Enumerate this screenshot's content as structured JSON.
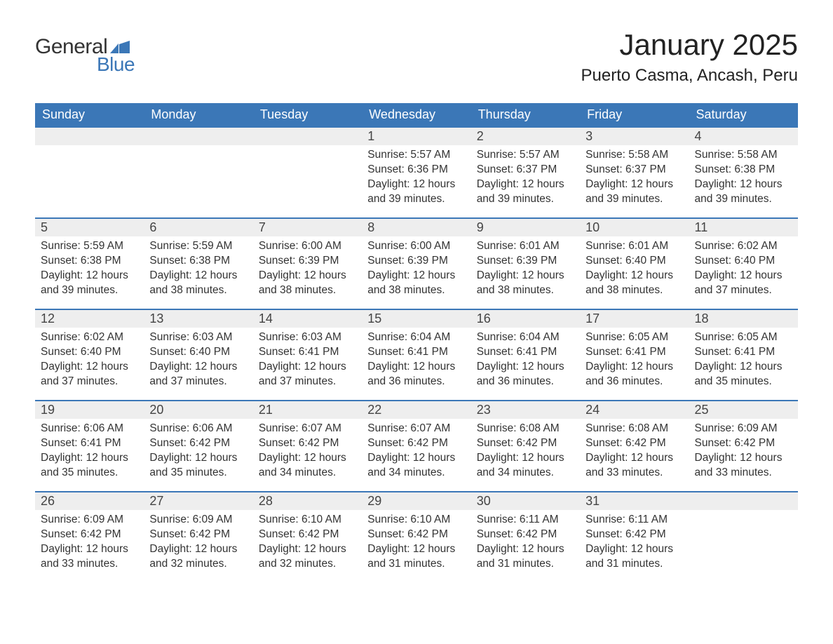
{
  "logo": {
    "text_general": "General",
    "text_blue": "Blue",
    "brand_color": "#3b77b7"
  },
  "title": "January 2025",
  "location": "Puerto Casma, Ancash, Peru",
  "colors": {
    "header_bg": "#3b77b7",
    "header_text": "#ffffff",
    "daynum_bg": "#eeeeee",
    "daynum_border": "#3b77b7",
    "body_text": "#333333",
    "page_bg": "#ffffff"
  },
  "typography": {
    "title_fontsize": 42,
    "location_fontsize": 24,
    "header_fontsize": 18,
    "daynum_fontsize": 18,
    "body_fontsize": 15.5
  },
  "weekdays": [
    "Sunday",
    "Monday",
    "Tuesday",
    "Wednesday",
    "Thursday",
    "Friday",
    "Saturday"
  ],
  "weeks": [
    [
      null,
      null,
      null,
      {
        "n": "1",
        "sunrise": "Sunrise: 5:57 AM",
        "sunset": "Sunset: 6:36 PM",
        "daylight": "Daylight: 12 hours and 39 minutes."
      },
      {
        "n": "2",
        "sunrise": "Sunrise: 5:57 AM",
        "sunset": "Sunset: 6:37 PM",
        "daylight": "Daylight: 12 hours and 39 minutes."
      },
      {
        "n": "3",
        "sunrise": "Sunrise: 5:58 AM",
        "sunset": "Sunset: 6:37 PM",
        "daylight": "Daylight: 12 hours and 39 minutes."
      },
      {
        "n": "4",
        "sunrise": "Sunrise: 5:58 AM",
        "sunset": "Sunset: 6:38 PM",
        "daylight": "Daylight: 12 hours and 39 minutes."
      }
    ],
    [
      {
        "n": "5",
        "sunrise": "Sunrise: 5:59 AM",
        "sunset": "Sunset: 6:38 PM",
        "daylight": "Daylight: 12 hours and 39 minutes."
      },
      {
        "n": "6",
        "sunrise": "Sunrise: 5:59 AM",
        "sunset": "Sunset: 6:38 PM",
        "daylight": "Daylight: 12 hours and 38 minutes."
      },
      {
        "n": "7",
        "sunrise": "Sunrise: 6:00 AM",
        "sunset": "Sunset: 6:39 PM",
        "daylight": "Daylight: 12 hours and 38 minutes."
      },
      {
        "n": "8",
        "sunrise": "Sunrise: 6:00 AM",
        "sunset": "Sunset: 6:39 PM",
        "daylight": "Daylight: 12 hours and 38 minutes."
      },
      {
        "n": "9",
        "sunrise": "Sunrise: 6:01 AM",
        "sunset": "Sunset: 6:39 PM",
        "daylight": "Daylight: 12 hours and 38 minutes."
      },
      {
        "n": "10",
        "sunrise": "Sunrise: 6:01 AM",
        "sunset": "Sunset: 6:40 PM",
        "daylight": "Daylight: 12 hours and 38 minutes."
      },
      {
        "n": "11",
        "sunrise": "Sunrise: 6:02 AM",
        "sunset": "Sunset: 6:40 PM",
        "daylight": "Daylight: 12 hours and 37 minutes."
      }
    ],
    [
      {
        "n": "12",
        "sunrise": "Sunrise: 6:02 AM",
        "sunset": "Sunset: 6:40 PM",
        "daylight": "Daylight: 12 hours and 37 minutes."
      },
      {
        "n": "13",
        "sunrise": "Sunrise: 6:03 AM",
        "sunset": "Sunset: 6:40 PM",
        "daylight": "Daylight: 12 hours and 37 minutes."
      },
      {
        "n": "14",
        "sunrise": "Sunrise: 6:03 AM",
        "sunset": "Sunset: 6:41 PM",
        "daylight": "Daylight: 12 hours and 37 minutes."
      },
      {
        "n": "15",
        "sunrise": "Sunrise: 6:04 AM",
        "sunset": "Sunset: 6:41 PM",
        "daylight": "Daylight: 12 hours and 36 minutes."
      },
      {
        "n": "16",
        "sunrise": "Sunrise: 6:04 AM",
        "sunset": "Sunset: 6:41 PM",
        "daylight": "Daylight: 12 hours and 36 minutes."
      },
      {
        "n": "17",
        "sunrise": "Sunrise: 6:05 AM",
        "sunset": "Sunset: 6:41 PM",
        "daylight": "Daylight: 12 hours and 36 minutes."
      },
      {
        "n": "18",
        "sunrise": "Sunrise: 6:05 AM",
        "sunset": "Sunset: 6:41 PM",
        "daylight": "Daylight: 12 hours and 35 minutes."
      }
    ],
    [
      {
        "n": "19",
        "sunrise": "Sunrise: 6:06 AM",
        "sunset": "Sunset: 6:41 PM",
        "daylight": "Daylight: 12 hours and 35 minutes."
      },
      {
        "n": "20",
        "sunrise": "Sunrise: 6:06 AM",
        "sunset": "Sunset: 6:42 PM",
        "daylight": "Daylight: 12 hours and 35 minutes."
      },
      {
        "n": "21",
        "sunrise": "Sunrise: 6:07 AM",
        "sunset": "Sunset: 6:42 PM",
        "daylight": "Daylight: 12 hours and 34 minutes."
      },
      {
        "n": "22",
        "sunrise": "Sunrise: 6:07 AM",
        "sunset": "Sunset: 6:42 PM",
        "daylight": "Daylight: 12 hours and 34 minutes."
      },
      {
        "n": "23",
        "sunrise": "Sunrise: 6:08 AM",
        "sunset": "Sunset: 6:42 PM",
        "daylight": "Daylight: 12 hours and 34 minutes."
      },
      {
        "n": "24",
        "sunrise": "Sunrise: 6:08 AM",
        "sunset": "Sunset: 6:42 PM",
        "daylight": "Daylight: 12 hours and 33 minutes."
      },
      {
        "n": "25",
        "sunrise": "Sunrise: 6:09 AM",
        "sunset": "Sunset: 6:42 PM",
        "daylight": "Daylight: 12 hours and 33 minutes."
      }
    ],
    [
      {
        "n": "26",
        "sunrise": "Sunrise: 6:09 AM",
        "sunset": "Sunset: 6:42 PM",
        "daylight": "Daylight: 12 hours and 33 minutes."
      },
      {
        "n": "27",
        "sunrise": "Sunrise: 6:09 AM",
        "sunset": "Sunset: 6:42 PM",
        "daylight": "Daylight: 12 hours and 32 minutes."
      },
      {
        "n": "28",
        "sunrise": "Sunrise: 6:10 AM",
        "sunset": "Sunset: 6:42 PM",
        "daylight": "Daylight: 12 hours and 32 minutes."
      },
      {
        "n": "29",
        "sunrise": "Sunrise: 6:10 AM",
        "sunset": "Sunset: 6:42 PM",
        "daylight": "Daylight: 12 hours and 31 minutes."
      },
      {
        "n": "30",
        "sunrise": "Sunrise: 6:11 AM",
        "sunset": "Sunset: 6:42 PM",
        "daylight": "Daylight: 12 hours and 31 minutes."
      },
      {
        "n": "31",
        "sunrise": "Sunrise: 6:11 AM",
        "sunset": "Sunset: 6:42 PM",
        "daylight": "Daylight: 12 hours and 31 minutes."
      },
      null
    ]
  ]
}
